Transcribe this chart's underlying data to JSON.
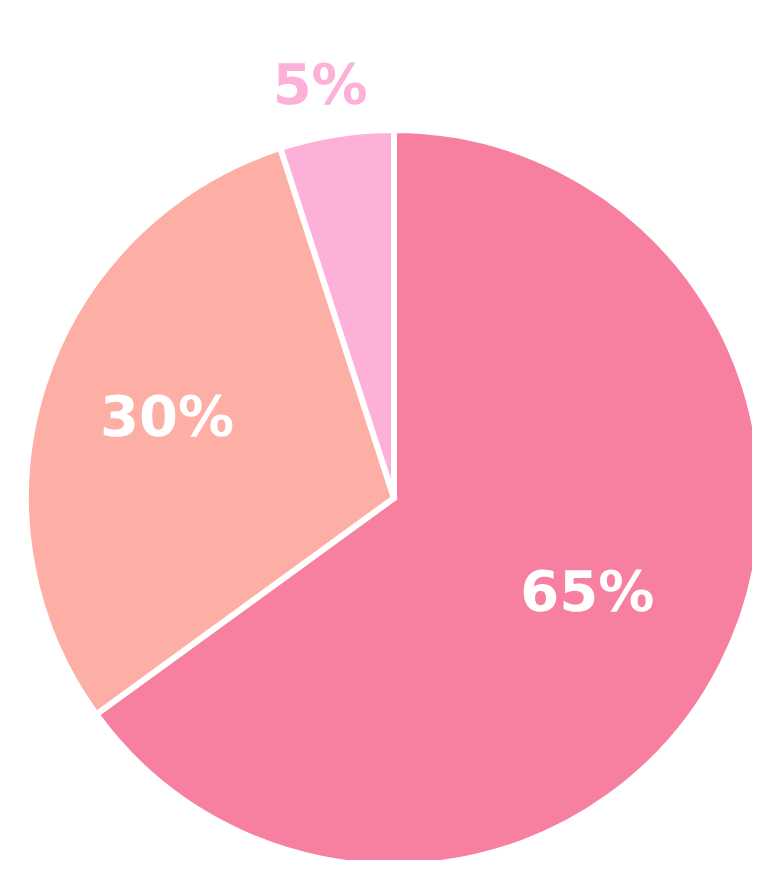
{
  "chart_data": {
    "type": "pie",
    "categories": [
      null,
      null,
      null
    ],
    "values": [
      65,
      30,
      5
    ],
    "colors": [
      "#f77f9f",
      "#fdaea5",
      "#fdb0d8"
    ],
    "value_labels": [
      "65%",
      "30%",
      "5%"
    ]
  }
}
